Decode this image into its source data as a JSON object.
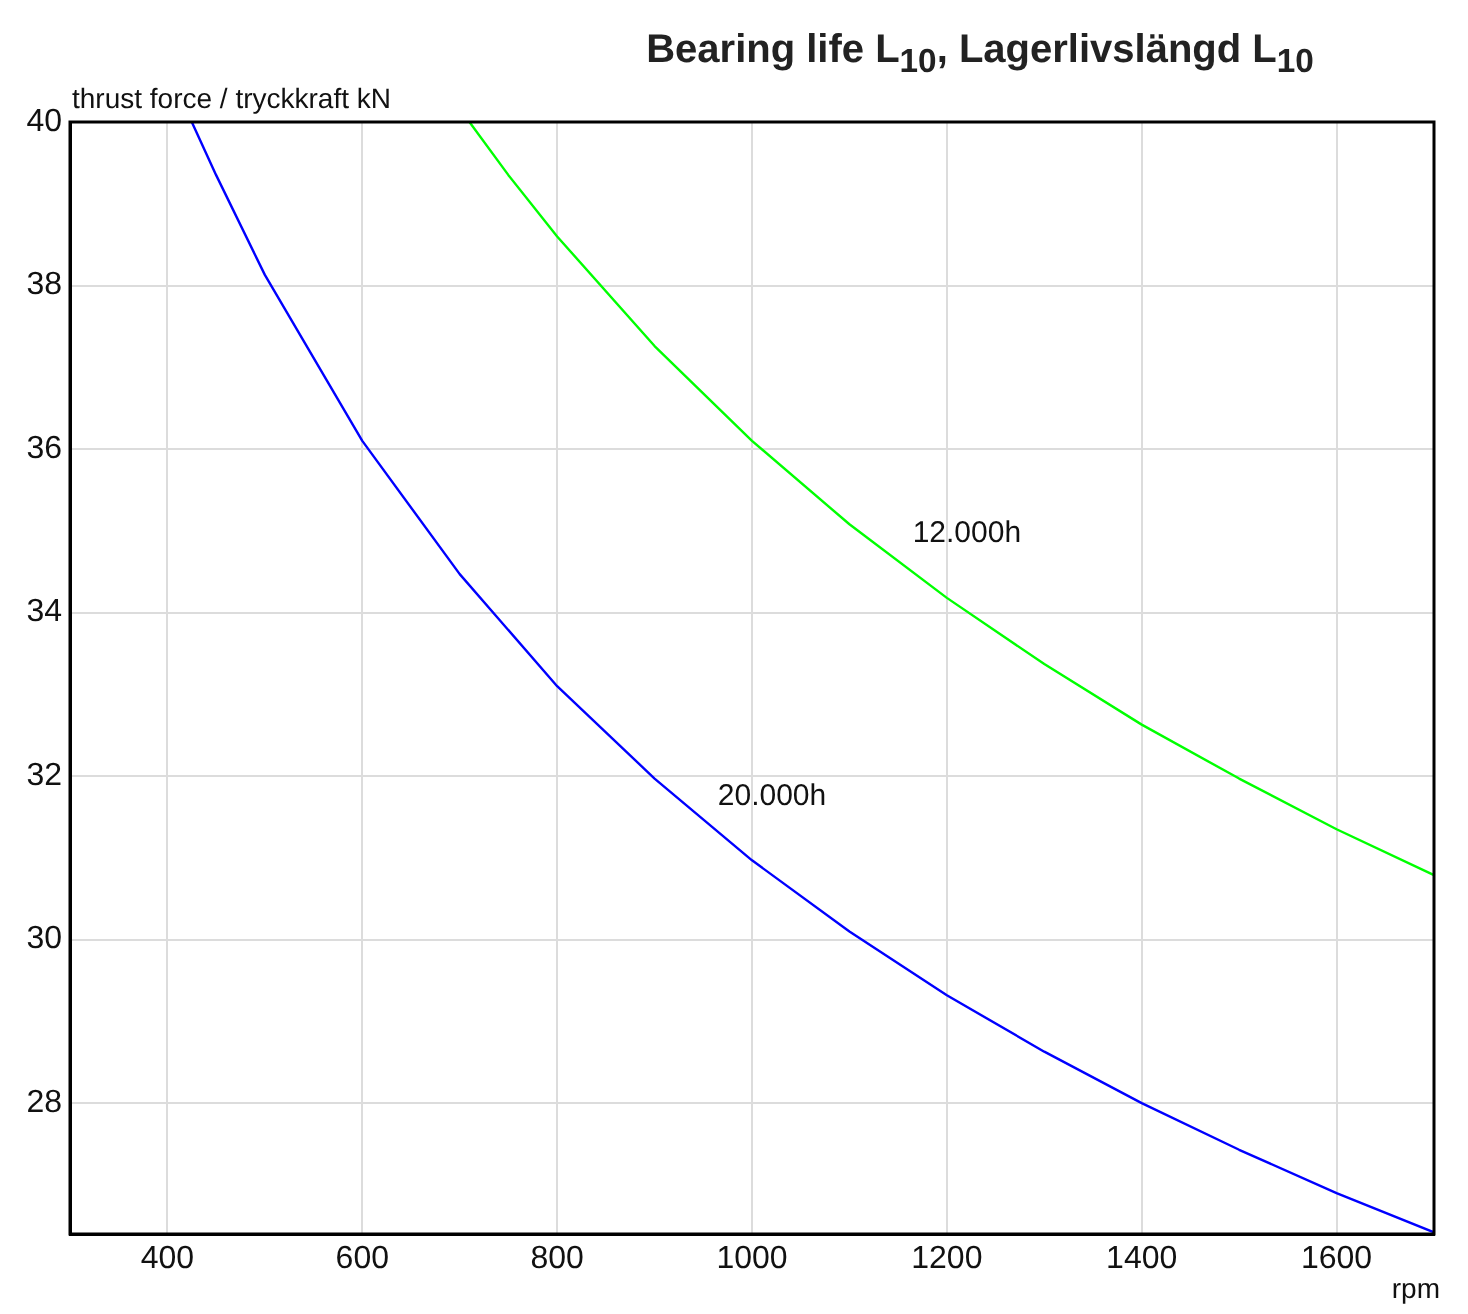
{
  "chart_data": {
    "type": "line",
    "title": "Bearing life L$_{10}$, Lagerlivslängd L$_{10}$",
    "xlabel": "rpm",
    "ylabel": "thrust force / tryckkraft kN",
    "xlim": [
      300,
      1700
    ],
    "xticks": [
      400,
      600,
      800,
      1000,
      1200,
      1400,
      1600
    ],
    "ylim": [
      26.4,
      40
    ],
    "yticks": [
      28,
      30,
      32,
      34,
      36,
      38,
      40
    ],
    "grid": true,
    "legend": false,
    "marker": "none",
    "line_style": "solid",
    "series": [
      {
        "name": "20.000h",
        "color": "#0000ff",
        "x": [
          425,
          450,
          500,
          600,
          700,
          800,
          900,
          1000,
          1100,
          1200,
          1300,
          1400,
          1500,
          1600,
          1700
        ],
        "values": [
          40.0,
          39.35,
          38.13,
          36.1,
          34.47,
          33.1,
          31.97,
          30.97,
          30.1,
          29.32,
          28.63,
          28.0,
          27.43,
          26.9,
          26.42
        ]
      },
      {
        "name": "12.000h",
        "color": "#00ff00",
        "x": [
          710,
          750,
          800,
          900,
          1000,
          1100,
          1200,
          1300,
          1400,
          1500,
          1600,
          1700
        ],
        "values": [
          40.0,
          39.35,
          38.6,
          37.26,
          36.1,
          35.08,
          34.18,
          33.37,
          32.63,
          31.97,
          31.35,
          30.79
        ]
      }
    ]
  }
}
